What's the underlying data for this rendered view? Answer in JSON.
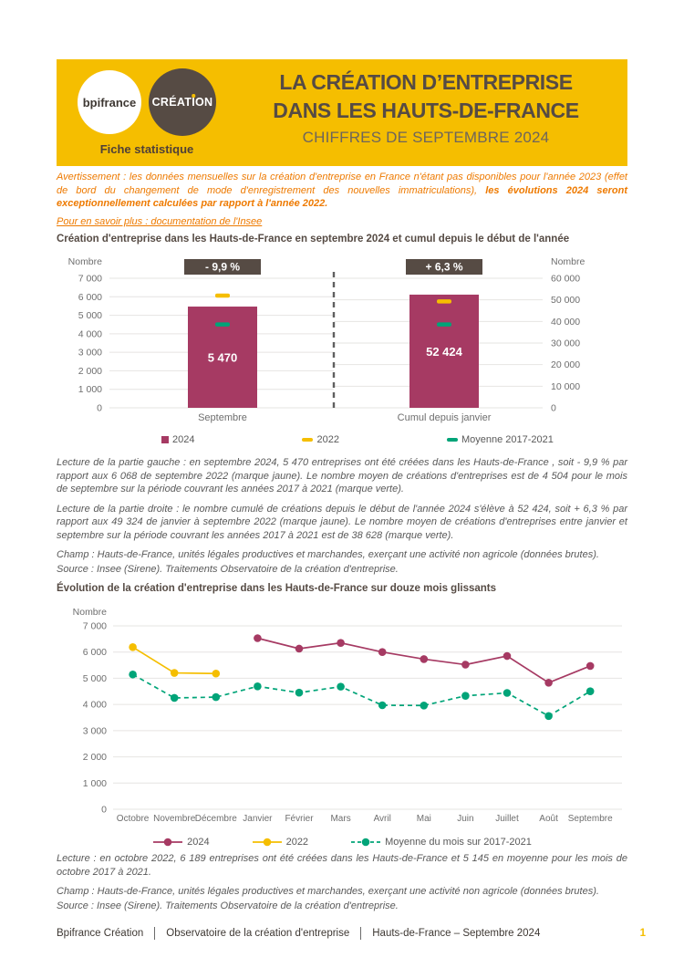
{
  "header": {
    "logo_bpifrance": "bpifrance",
    "logo_creation_pre": "CRÉAT",
    "logo_creation_i": "I",
    "logo_creation_post": "ON",
    "tagline": "Fiche statistique",
    "title_line1": "LA CRÉATION D’ENTREPRISE",
    "title_line2": "DANS LES HAUTS-DE-FRANCE",
    "subtitle": "CHIFFRES DE SEPTEMBRE 2024"
  },
  "notice": {
    "warning_normal": "Avertissement : les données mensuelles sur la création d'entreprise en France n'étant pas disponibles pour l'année 2023 (effet de bord du changement de mode d'enregistrement des nouvelles immatriculations),  ",
    "warning_bold": "les évolutions 2024 seront exceptionnellement calculées par rapport à l'année 2022.",
    "link": "Pour en savoir plus : documentation de l'Insee"
  },
  "section1": {
    "title": "Création d'entreprise dans les Hauts-de-France  en septembre 2024 et cumul depuis le début de l'année",
    "lecture1": "Lecture de la partie gauche : en septembre 2024, 5 470 entreprises ont été créées dans les Hauts-de-France , soit - 9,9 % par rapport aux 6 068 de septembre 2022 (marque jaune). Le nombre moyen de créations d'entreprises est de 4 504 pour le mois de septembre sur la période couvrant les années 2017 à 2021 (marque verte).",
    "lecture2": "Lecture de la partie droite : le nombre cumulé de créations depuis le début de l'année 2024 s'élève à 52 424, soit + 6,3 % par rapport aux 49 324 de janvier à septembre 2022 (marque jaune). Le nombre moyen de créations d'entreprises entre janvier et septembre sur la période couvrant les années 2017 à 2021 est de 38 628 (marque verte).",
    "champ": "Champ : Hauts-de-France, unités légales productives et marchandes, exerçant une activité non agricole (données brutes).",
    "source": "Source : Insee (Sirene). Traitements Observatoire de la création d'entreprise."
  },
  "section2": {
    "title": "Évolution de la création d'entreprise dans les Hauts-de-France  sur douze mois glissants",
    "lecture": "Lecture : en octobre 2022, 6 189 entreprises ont été créées dans les Hauts-de-France  et 5 145 en moyenne pour les mois de octobre 2017 à 2021.",
    "champ": "Champ : Hauts-de-France, unités légales productives et marchandes, exerçant une activité non agricole (données brutes).",
    "source": "Source : Insee (Sirene). Traitements Observatoire de la création d'entreprise."
  },
  "footer": {
    "item1": "Bpifrance Création",
    "item2": "Observatoire de la création d'entreprise",
    "item3": "Hauts-de-France – Septembre 2024",
    "page": "1"
  },
  "colors": {
    "yellow": "#F5BE00",
    "dark_brown": "#564B44",
    "orange": "#EE7A00",
    "maroon": "#A63A63",
    "green": "#00A478",
    "text_gray": "#595959",
    "axis_gray": "#6E6E6E",
    "grid": "#E6E4E2",
    "divider": "#5f5f5f"
  },
  "chart_data": [
    {
      "type": "bar",
      "title": "Création d'entreprise dans les Hauts-de-France en septembre 2024 et cumul depuis le début de l'année",
      "axis_label_left": "Nombre",
      "axis_label_right": "Nombre",
      "left_axis": {
        "min": 0,
        "max": 7000,
        "step": 1000
      },
      "right_axis": {
        "min": 0,
        "max": 60000,
        "step": 10000
      },
      "grid": true,
      "groups": [
        {
          "label": "Septembre",
          "axis": "left",
          "badge": "- 9,9 %",
          "bar_2024": 5470,
          "bar_label": "5 470",
          "mark_2022": 6068,
          "mark_avg_2017_2021": 4504
        },
        {
          "label": "Cumul depuis janvier",
          "axis": "right",
          "badge": "+ 6,3 %",
          "bar_2024": 52424,
          "bar_label": "52 424",
          "mark_2022": 49324,
          "mark_avg_2017_2021": 38628
        }
      ],
      "legend": [
        {
          "label": "2024",
          "marker": "square",
          "color": "#A63A63"
        },
        {
          "label": "2022",
          "marker": "dash",
          "color": "#F5BE00"
        },
        {
          "label": "Moyenne 2017-2021",
          "marker": "dash",
          "color": "#00A478"
        }
      ],
      "legend_position": "bottom"
    },
    {
      "type": "line",
      "title": "Évolution de la création d'entreprise dans les Hauts-de-France sur douze mois glissants",
      "ylabel": "Nombre",
      "ylim": [
        0,
        7000
      ],
      "ystep": 1000,
      "grid": true,
      "categories": [
        "Octobre",
        "Novembre",
        "Décembre",
        "Janvier",
        "Février",
        "Mars",
        "Avril",
        "Mai",
        "Juin",
        "Juillet",
        "Août",
        "Septembre"
      ],
      "series": [
        {
          "name": "2022",
          "color": "#F5BE00",
          "style": "solid",
          "values": [
            6189,
            5205,
            5180,
            null,
            null,
            null,
            null,
            null,
            null,
            null,
            null,
            null
          ]
        },
        {
          "name": "Moyenne du mois sur 2017-2021",
          "color": "#00A478",
          "style": "dashed",
          "values": [
            5145,
            4250,
            4280,
            4690,
            4450,
            4680,
            3970,
            3960,
            4330,
            4440,
            3560,
            4504
          ]
        },
        {
          "name": "2024",
          "color": "#A63A63",
          "style": "solid",
          "values": [
            null,
            null,
            null,
            6530,
            6130,
            6350,
            6000,
            5730,
            5520,
            5850,
            4830,
            5470
          ]
        }
      ],
      "legend": [
        {
          "label": "2024",
          "marker": "line-dot",
          "style": "solid",
          "color": "#A63A63"
        },
        {
          "label": "2022",
          "marker": "line-dot",
          "style": "solid",
          "color": "#F5BE00"
        },
        {
          "label": "Moyenne du mois sur 2017-2021",
          "marker": "line-dot",
          "style": "dashed",
          "color": "#00A478"
        }
      ],
      "legend_position": "bottom"
    }
  ]
}
